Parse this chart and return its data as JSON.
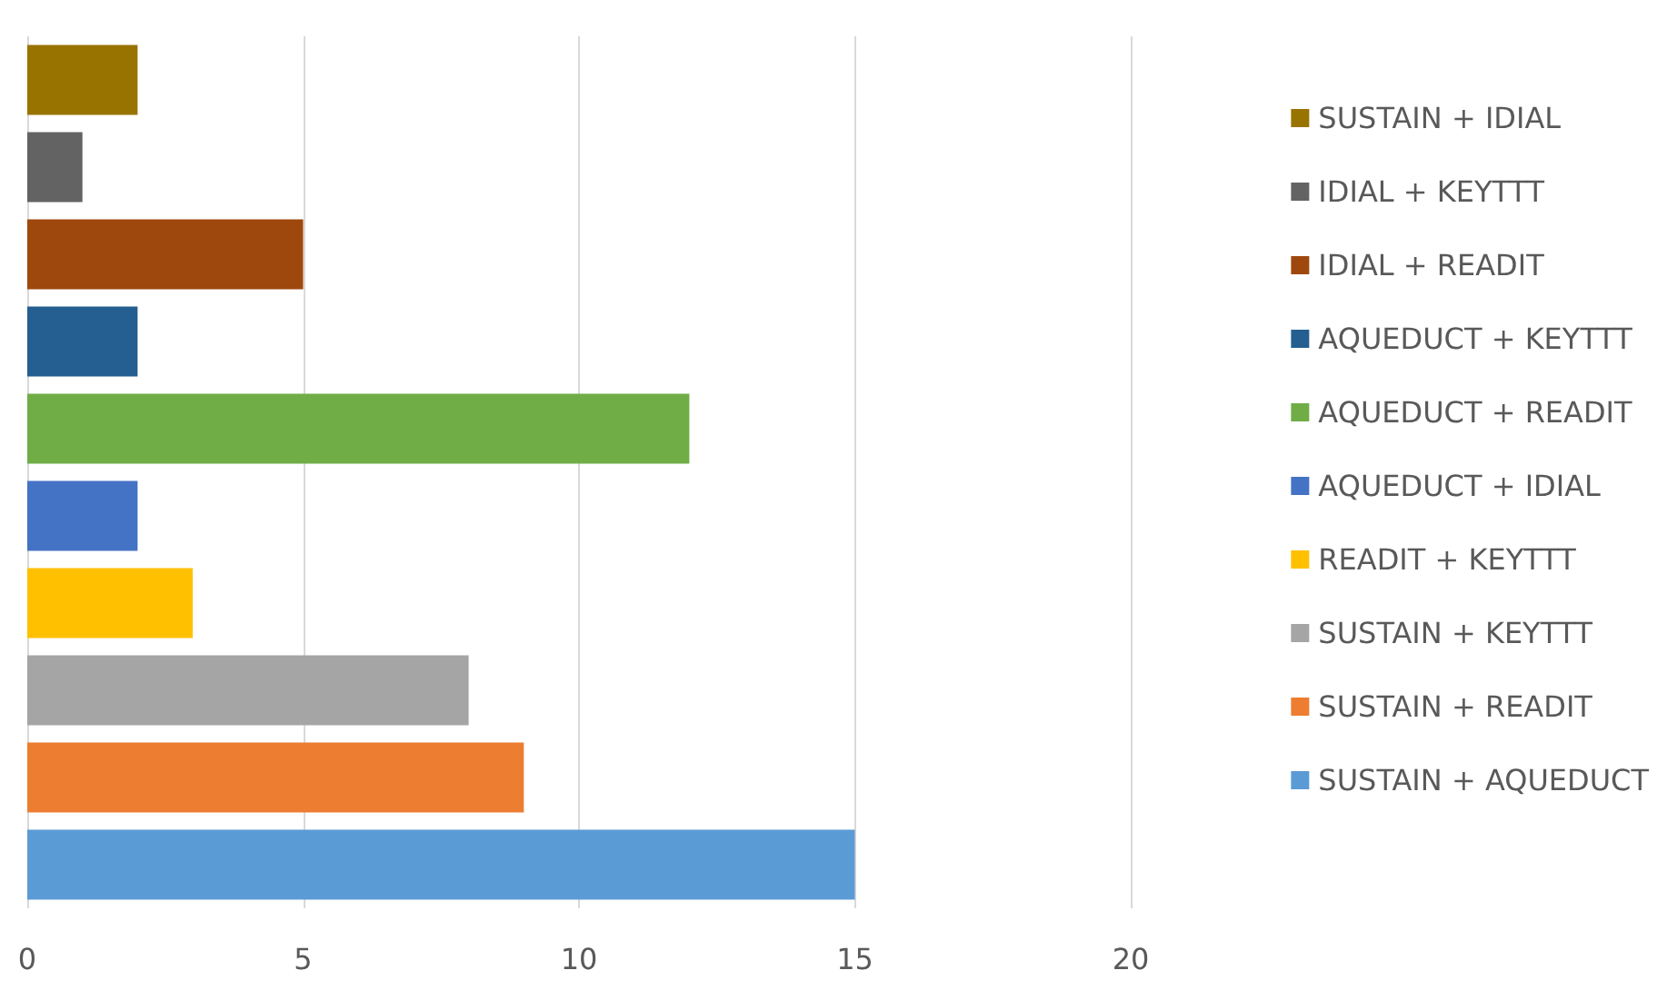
{
  "chart_data": {
    "type": "bar",
    "orientation": "horizontal",
    "categories": [
      null
    ],
    "series": [
      {
        "name": "SUSTAIN + AQUEDUCT",
        "color": "#5b9bd5",
        "values": [
          15
        ]
      },
      {
        "name": "SUSTAIN + READIT",
        "color": "#ed7d31",
        "values": [
          9
        ]
      },
      {
        "name": "SUSTAIN + KEYTTT",
        "color": "#a5a5a5",
        "values": [
          8
        ]
      },
      {
        "name": "READIT + KEYTTT",
        "color": "#ffc000",
        "values": [
          3
        ]
      },
      {
        "name": "AQUEDUCT + IDIAL",
        "color": "#4472c4",
        "values": [
          2
        ]
      },
      {
        "name": "AQUEDUCT + READIT",
        "color": "#70ad47",
        "values": [
          12
        ]
      },
      {
        "name": "AQUEDUCT + KEYTTT",
        "color": "#255e91",
        "values": [
          2
        ]
      },
      {
        "name": "IDIAL + READIT",
        "color": "#9e480e",
        "values": [
          5
        ]
      },
      {
        "name": "IDIAL + KEYTTT",
        "color": "#636363",
        "values": [
          1
        ]
      },
      {
        "name": "SUSTAIN + IDIAL",
        "color": "#997300",
        "values": [
          2
        ]
      }
    ],
    "xlim": [
      0,
      20
    ],
    "xticks": [
      0,
      5,
      10,
      15,
      20
    ],
    "grid": "x",
    "legend": "right"
  }
}
